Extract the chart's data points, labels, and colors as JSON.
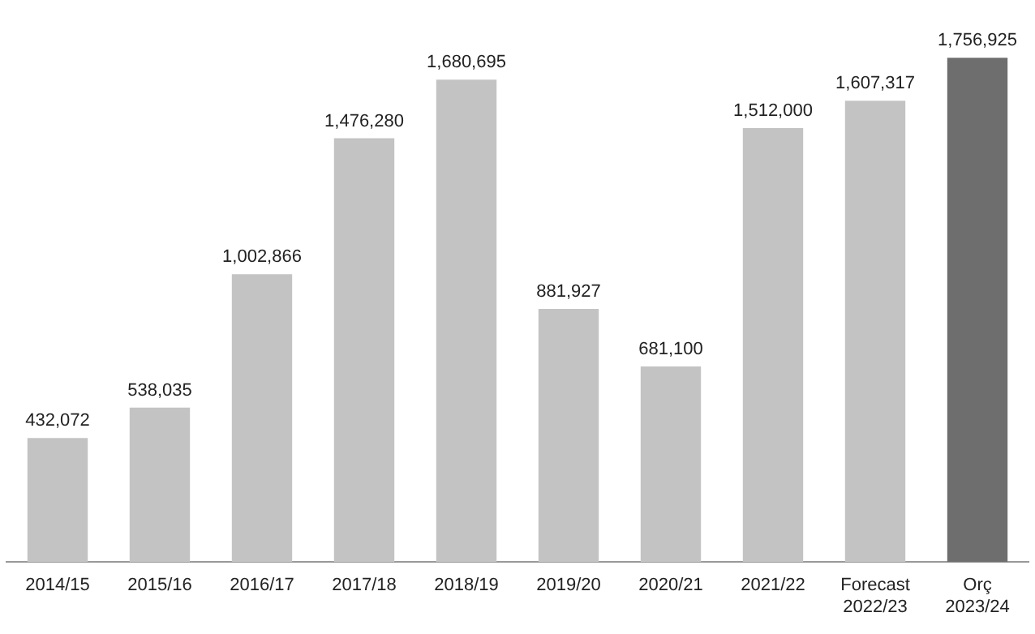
{
  "chart_data": {
    "type": "bar",
    "categories": [
      "2014/15",
      "2015/16",
      "2016/17",
      "2017/18",
      "2018/19",
      "2019/20",
      "2020/21",
      "2021/22",
      "Forecast 2022/23",
      "Orç 2023/24"
    ],
    "values": [
      432072,
      538035,
      1002866,
      1476280,
      1680695,
      881927,
      681100,
      1512000,
      1607317,
      1756925
    ],
    "colors": [
      "#c3c3c3",
      "#c3c3c3",
      "#c3c3c3",
      "#c3c3c3",
      "#c3c3c3",
      "#c3c3c3",
      "#c3c3c3",
      "#c3c3c3",
      "#c3c3c3",
      "#6e6e6e"
    ],
    "value_labels": [
      "432,072",
      "538,035",
      "1,002,866",
      "1,476,280",
      "1,680,695",
      "881,927",
      "681,100",
      "1,512,000",
      "1,607,317",
      "1,756,925"
    ],
    "grid": false,
    "legend": false,
    "tick_labels": "x"
  }
}
